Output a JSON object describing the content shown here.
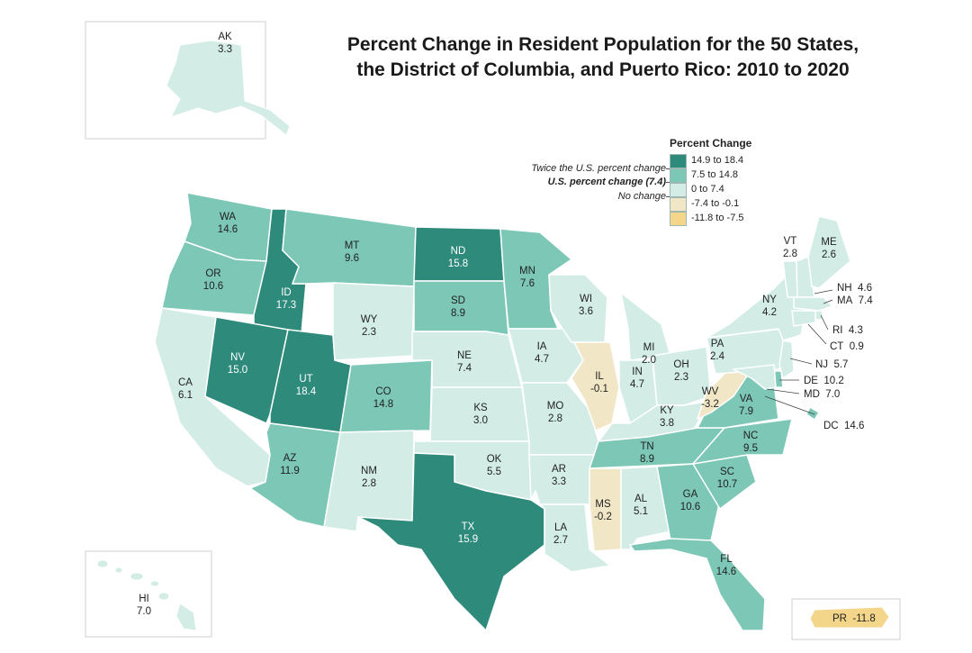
{
  "title": {
    "line1": "Percent Change in Resident Population for the 50 States,",
    "line2": "the District of Columbia, and Puerto Rico: 2010 to 2020"
  },
  "colors": {
    "bin1": "#2e8a7b",
    "bin2": "#7cc7b6",
    "bin3": "#d3ede6",
    "bin4": "#f1e6c5",
    "bin5": "#f4d68a",
    "border": "#ffffff",
    "inset_border": "#cfcfcf"
  },
  "legend": {
    "title": "Percent Change",
    "bins": [
      {
        "label": "14.9 to 18.4"
      },
      {
        "label": "7.5 to 14.8"
      },
      {
        "label": "0 to 7.4"
      },
      {
        "label": "-7.4 to -0.1"
      },
      {
        "label": "-11.8 to -7.5"
      }
    ],
    "notes": {
      "twice": "Twice the U.S. percent change",
      "us": "U.S. percent change (7.4)",
      "none": "No change"
    }
  },
  "states": {
    "AK": {
      "abbr": "AK",
      "value": "3.3"
    },
    "HI": {
      "abbr": "HI",
      "value": "7.0"
    },
    "PR": {
      "abbr": "PR",
      "value": "-11.8"
    },
    "WA": {
      "abbr": "WA",
      "value": "14.6"
    },
    "OR": {
      "abbr": "OR",
      "value": "10.6"
    },
    "CA": {
      "abbr": "CA",
      "value": "6.1"
    },
    "ID": {
      "abbr": "ID",
      "value": "17.3"
    },
    "NV": {
      "abbr": "NV",
      "value": "15.0"
    },
    "UT": {
      "abbr": "UT",
      "value": "18.4"
    },
    "AZ": {
      "abbr": "AZ",
      "value": "11.9"
    },
    "MT": {
      "abbr": "MT",
      "value": "9.6"
    },
    "WY": {
      "abbr": "WY",
      "value": "2.3"
    },
    "CO": {
      "abbr": "CO",
      "value": "14.8"
    },
    "NM": {
      "abbr": "NM",
      "value": "2.8"
    },
    "ND": {
      "abbr": "ND",
      "value": "15.8"
    },
    "SD": {
      "abbr": "SD",
      "value": "8.9"
    },
    "NE": {
      "abbr": "NE",
      "value": "7.4"
    },
    "KS": {
      "abbr": "KS",
      "value": "3.0"
    },
    "OK": {
      "abbr": "OK",
      "value": "5.5"
    },
    "TX": {
      "abbr": "TX",
      "value": "15.9"
    },
    "MN": {
      "abbr": "MN",
      "value": "7.6"
    },
    "IA": {
      "abbr": "IA",
      "value": "4.7"
    },
    "MO": {
      "abbr": "MO",
      "value": "2.8"
    },
    "AR": {
      "abbr": "AR",
      "value": "3.3"
    },
    "LA": {
      "abbr": "LA",
      "value": "2.7"
    },
    "WI": {
      "abbr": "WI",
      "value": "3.6"
    },
    "IL": {
      "abbr": "IL",
      "value": "-0.1"
    },
    "MI": {
      "abbr": "MI",
      "value": "2.0"
    },
    "IN": {
      "abbr": "IN",
      "value": "4.7"
    },
    "OH": {
      "abbr": "OH",
      "value": "2.3"
    },
    "KY": {
      "abbr": "KY",
      "value": "3.8"
    },
    "TN": {
      "abbr": "TN",
      "value": "8.9"
    },
    "MS": {
      "abbr": "MS",
      "value": "-0.2"
    },
    "AL": {
      "abbr": "AL",
      "value": "5.1"
    },
    "GA": {
      "abbr": "GA",
      "value": "10.6"
    },
    "FL": {
      "abbr": "FL",
      "value": "14.6"
    },
    "SC": {
      "abbr": "SC",
      "value": "10.7"
    },
    "NC": {
      "abbr": "NC",
      "value": "9.5"
    },
    "VA": {
      "abbr": "VA",
      "value": "7.9"
    },
    "WV": {
      "abbr": "WV",
      "value": "-3.2"
    },
    "PA": {
      "abbr": "PA",
      "value": "2.4"
    },
    "NY": {
      "abbr": "NY",
      "value": "4.2"
    },
    "VT": {
      "abbr": "VT",
      "value": "2.8"
    },
    "ME": {
      "abbr": "ME",
      "value": "2.6"
    },
    "NH": {
      "abbr": "NH",
      "value": "4.6"
    },
    "MA": {
      "abbr": "MA",
      "value": "7.4"
    },
    "RI": {
      "abbr": "RI",
      "value": "4.3"
    },
    "CT": {
      "abbr": "CT",
      "value": "0.9"
    },
    "NJ": {
      "abbr": "NJ",
      "value": "5.7"
    },
    "DE": {
      "abbr": "DE",
      "value": "10.2"
    },
    "MD": {
      "abbr": "MD",
      "value": "7.0"
    },
    "DC": {
      "abbr": "DC",
      "value": "14.6"
    }
  }
}
